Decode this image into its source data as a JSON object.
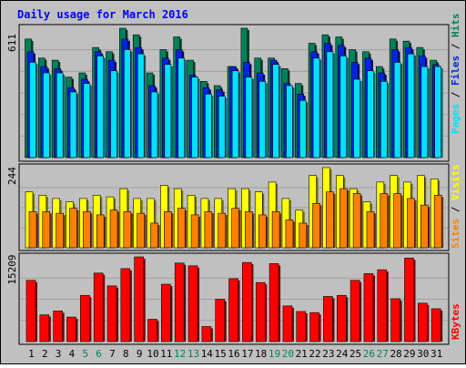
{
  "title": "Daily usage for March 2016",
  "colors": {
    "hits": "#00805c",
    "files": "#0024e0",
    "pages": "#00e0ff",
    "visits": "#ffff00",
    "sites": "#ff8000",
    "kbytes": "#ff0000",
    "background": "#c0c0c0",
    "weekend_day": "#00805c",
    "weekday_day": "#000000",
    "title": "#0000ff"
  },
  "chart_data": [
    {
      "type": "bar",
      "panel": "hits-files-pages",
      "max_label": "611",
      "legend": [
        "Pages",
        "Files",
        "Hits"
      ],
      "categories": [
        "1",
        "2",
        "3",
        "4",
        "5",
        "6",
        "7",
        "8",
        "9",
        "10",
        "11",
        "12",
        "13",
        "14",
        "15",
        "16",
        "17",
        "18",
        "19",
        "20",
        "21",
        "22",
        "23",
        "24",
        "25",
        "26",
        "27",
        "28",
        "29",
        "30",
        "31"
      ],
      "weekend_days": [
        "5",
        "6",
        "12",
        "13",
        "19",
        "20",
        "26",
        "27"
      ],
      "ylim": [
        0,
        611
      ],
      "series": [
        {
          "name": "Hits",
          "values": [
            560,
            470,
            460,
            380,
            400,
            520,
            500,
            611,
            580,
            400,
            510,
            570,
            460,
            360,
            340,
            430,
            611,
            470,
            470,
            420,
            350,
            540,
            580,
            570,
            510,
            500,
            430,
            560,
            550,
            520,
            460
          ]
        },
        {
          "name": "Files",
          "values": [
            500,
            430,
            420,
            330,
            370,
            500,
            460,
            560,
            520,
            340,
            470,
            510,
            390,
            330,
            320,
            430,
            450,
            400,
            460,
            350,
            300,
            500,
            540,
            530,
            450,
            470,
            400,
            510,
            520,
            480,
            440
          ]
        },
        {
          "name": "Pages",
          "values": [
            450,
            400,
            400,
            310,
            350,
            480,
            410,
            510,
            490,
            310,
            440,
            470,
            380,
            300,
            290,
            410,
            380,
            360,
            440,
            340,
            270,
            470,
            500,
            480,
            370,
            410,
            360,
            450,
            490,
            430,
            430
          ]
        }
      ]
    },
    {
      "type": "bar",
      "panel": "visits-sites",
      "max_label": "244",
      "legend": [
        "Sites",
        "Visits"
      ],
      "categories": [
        "1",
        "2",
        "3",
        "4",
        "5",
        "6",
        "7",
        "8",
        "9",
        "10",
        "11",
        "12",
        "13",
        "14",
        "15",
        "16",
        "17",
        "18",
        "19",
        "20",
        "21",
        "22",
        "23",
        "24",
        "25",
        "26",
        "27",
        "28",
        "29",
        "30",
        "31"
      ],
      "ylim": [
        0,
        244
      ],
      "series": [
        {
          "name": "Visits",
          "values": [
            170,
            160,
            150,
            140,
            150,
            160,
            155,
            180,
            150,
            150,
            190,
            180,
            160,
            150,
            150,
            180,
            180,
            170,
            200,
            150,
            115,
            220,
            244,
            220,
            180,
            140,
            200,
            220,
            200,
            220,
            210
          ]
        },
        {
          "name": "Sites",
          "values": [
            110,
            110,
            105,
            120,
            110,
            100,
            115,
            110,
            105,
            75,
            110,
            120,
            100,
            110,
            105,
            120,
            110,
            100,
            110,
            85,
            75,
            135,
            170,
            180,
            165,
            110,
            165,
            165,
            150,
            130,
            160
          ]
        }
      ]
    },
    {
      "type": "bar",
      "panel": "kbytes",
      "max_label": "15209",
      "legend": [
        "KBytes"
      ],
      "categories": [
        "1",
        "2",
        "3",
        "4",
        "5",
        "6",
        "7",
        "8",
        "9",
        "10",
        "11",
        "12",
        "13",
        "14",
        "15",
        "16",
        "17",
        "18",
        "19",
        "20",
        "21",
        "22",
        "23",
        "24",
        "25",
        "26",
        "27",
        "28",
        "29",
        "30",
        "31"
      ],
      "ylim": [
        0,
        15209
      ],
      "series": [
        {
          "name": "KBytes",
          "values": [
            11000,
            4800,
            5500,
            4400,
            8300,
            12300,
            10000,
            13100,
            15209,
            4000,
            10300,
            14100,
            13600,
            2700,
            7600,
            11300,
            14200,
            10600,
            14000,
            6400,
            5400,
            5200,
            8100,
            8300,
            11000,
            12200,
            12900,
            7700,
            15000,
            6900,
            5900
          ]
        }
      ]
    }
  ]
}
